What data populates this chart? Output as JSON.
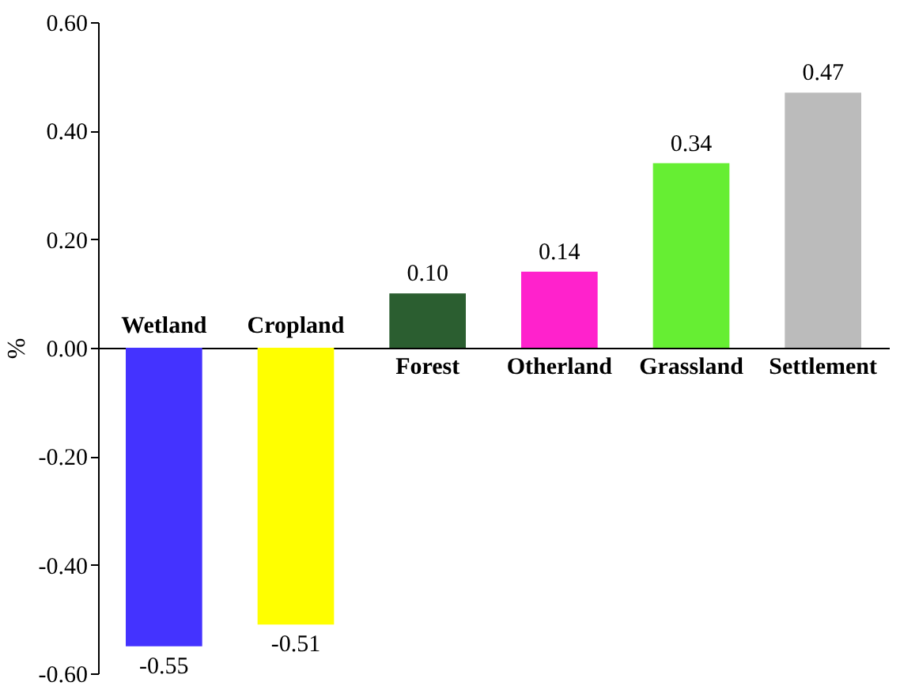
{
  "chart_data": {
    "type": "bar",
    "ylabel": "%",
    "categories": [
      "Wetland",
      "Cropland",
      "Forest",
      "Otherland",
      "Grassland",
      "Settlement"
    ],
    "values": [
      -0.55,
      -0.51,
      0.1,
      0.14,
      0.34,
      0.47
    ],
    "value_labels": [
      "-0.55",
      "-0.51",
      "0.10",
      "0.14",
      "0.34",
      "0.47"
    ],
    "colors": [
      "#4433ff",
      "#ffff00",
      "#2b5e30",
      "#ff22cc",
      "#66ee33",
      "#bbbbbb"
    ],
    "ylim": [
      -0.6,
      0.6
    ],
    "yticks": [
      {
        "value": -0.6,
        "label": "-0.60"
      },
      {
        "value": -0.4,
        "label": "-0.40"
      },
      {
        "value": -0.2,
        "label": "-0.20"
      },
      {
        "value": 0,
        "label": "0.00"
      },
      {
        "value": 0.2,
        "label": "0.20"
      },
      {
        "value": 0.4,
        "label": "0.40"
      },
      {
        "value": 0.6,
        "label": "0.60"
      }
    ],
    "grid": false
  }
}
